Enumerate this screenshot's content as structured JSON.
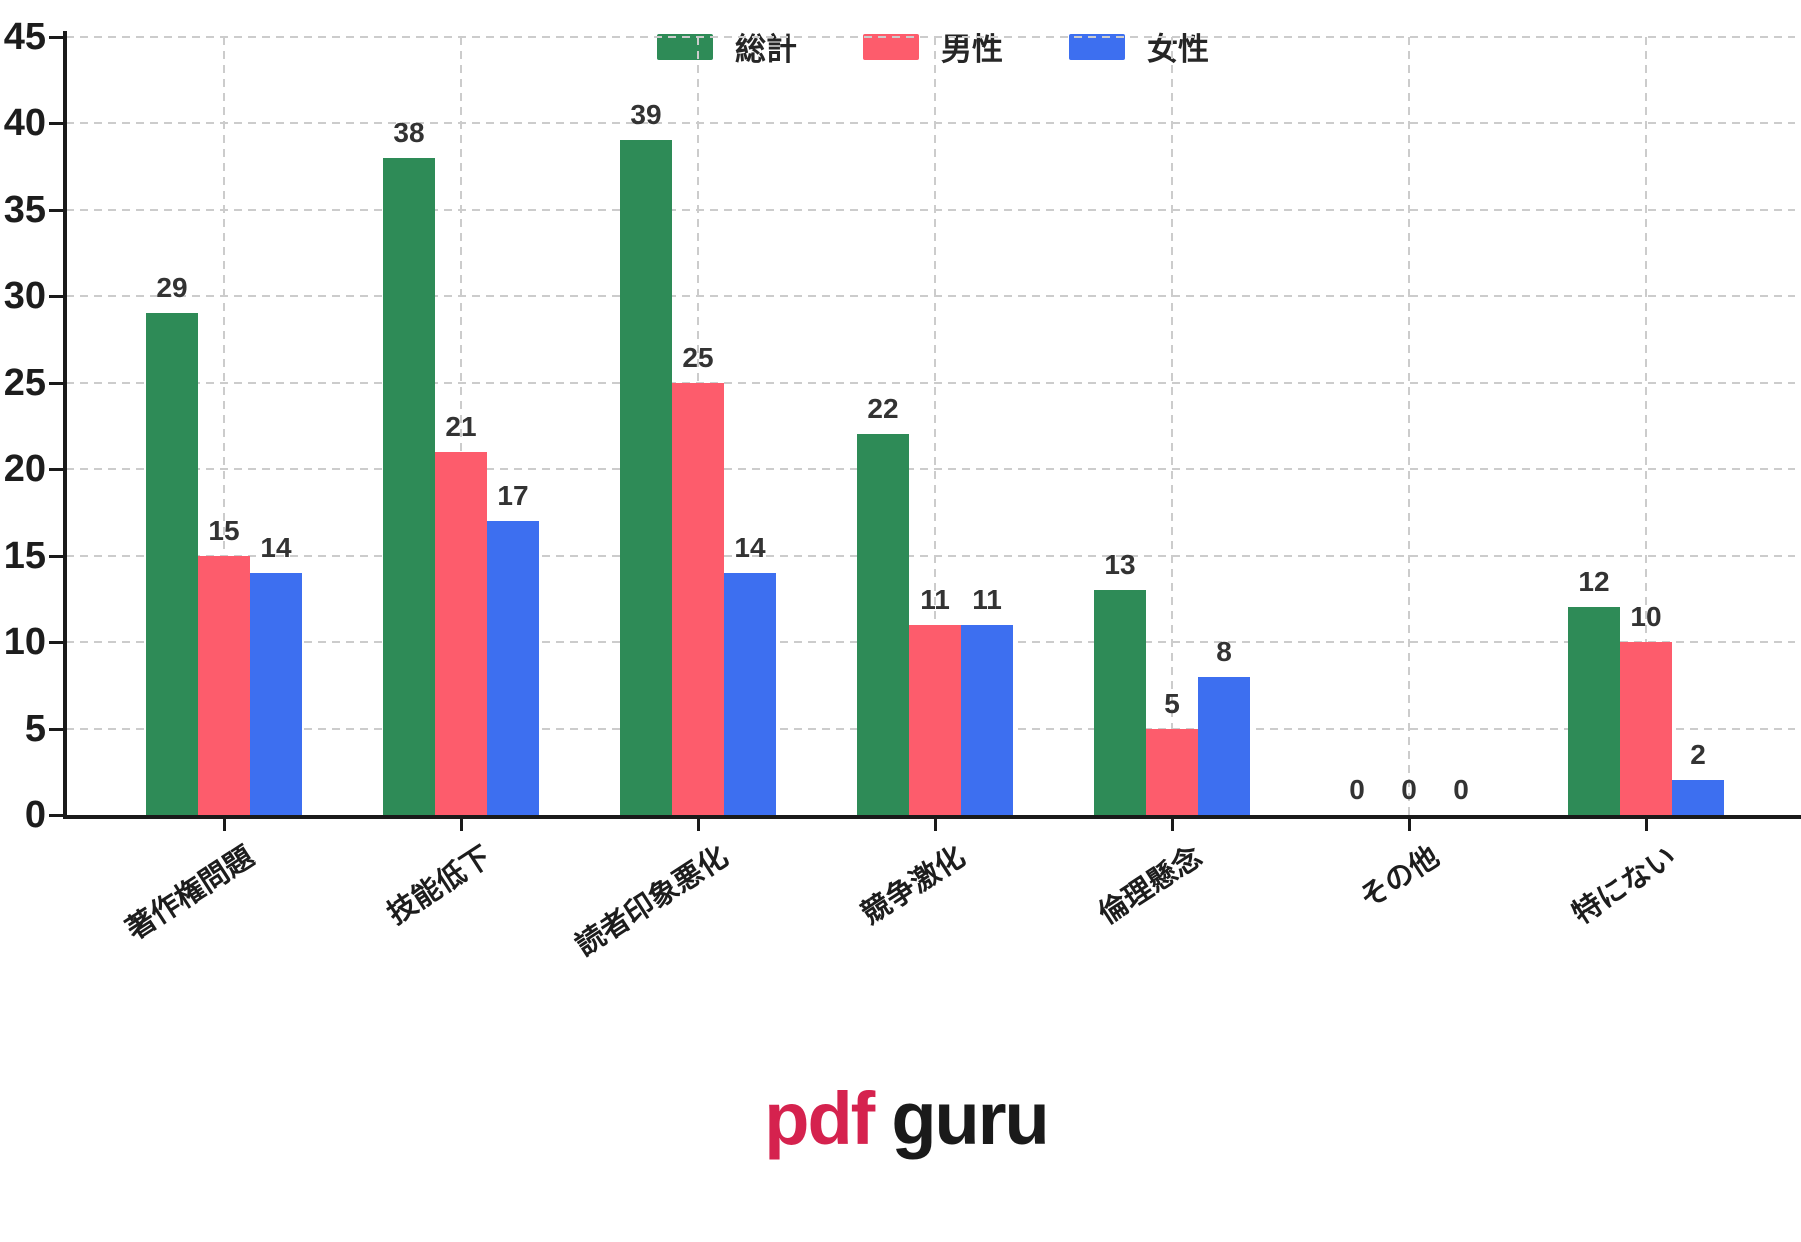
{
  "chart_data": {
    "type": "bar",
    "title": "",
    "xlabel": "",
    "ylabel": "",
    "categories": [
      "著作権問題",
      "技能低下",
      "読者印象悪化",
      "競争激化",
      "倫理懸念",
      "その他",
      "特にない"
    ],
    "series": [
      {
        "name": "総計",
        "color": "#2e8b57",
        "values": [
          29,
          38,
          39,
          22,
          13,
          0,
          12
        ]
      },
      {
        "name": "男性",
        "color": "#fd5c6c",
        "values": [
          15,
          21,
          25,
          11,
          5,
          0,
          10
        ]
      },
      {
        "name": "女性",
        "color": "#3d6ff0",
        "values": [
          14,
          17,
          14,
          11,
          8,
          0,
          2
        ]
      }
    ],
    "value_labels_shown": true,
    "ylim": [
      0,
      45
    ],
    "yticks": [
      0,
      5,
      10,
      15,
      20,
      25,
      30,
      35,
      40,
      45
    ],
    "grid": "dashed",
    "grid_color": "#cccccc",
    "legend_position": "top-center"
  },
  "logo": {
    "part1": "pdf",
    "part2": "guru",
    "part1_color": "#d5224e",
    "part2_color": "#1a1a1a"
  }
}
